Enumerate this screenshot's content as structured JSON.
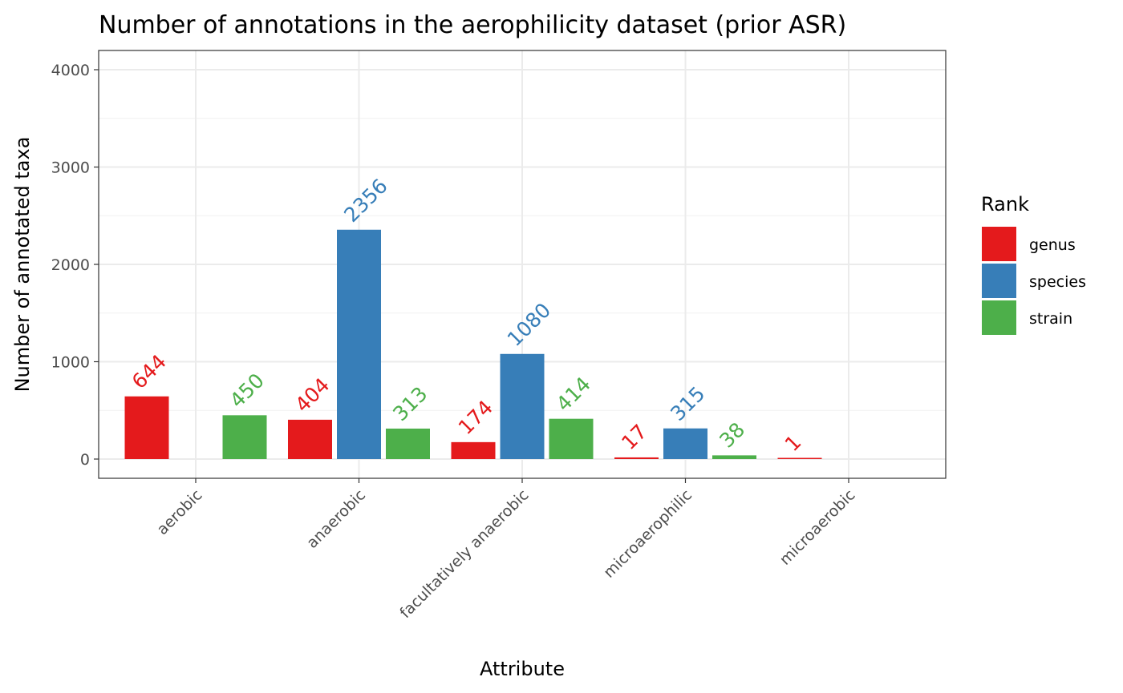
{
  "chart_data": {
    "type": "bar",
    "title": "Number of annotations in the aerophilicity dataset (prior ASR)",
    "xlabel": "Attribute",
    "ylabel": "Number of annotated taxa",
    "categories": [
      "aerobic",
      "anaerobic",
      "facultatively anaerobic",
      "microaerophilic",
      "microaerobic"
    ],
    "series": [
      {
        "name": "genus",
        "color": "#E41A1C",
        "values": [
          644,
          404,
          174,
          17,
          1
        ]
      },
      {
        "name": "species",
        "color": "#377EB8",
        "values": [
          null,
          2356,
          1080,
          315,
          null
        ]
      },
      {
        "name": "strain",
        "color": "#4DAF4A",
        "values": [
          450,
          313,
          414,
          38,
          null
        ]
      }
    ],
    "ylim": [
      0,
      4000
    ],
    "y_ticks": [
      0,
      1000,
      2000,
      3000,
      4000
    ],
    "y_tick_labels": [
      "0",
      "1000",
      "2000",
      "3000",
      "4000"
    ],
    "legend": {
      "title": "Rank",
      "position": "right"
    },
    "grid": true
  }
}
